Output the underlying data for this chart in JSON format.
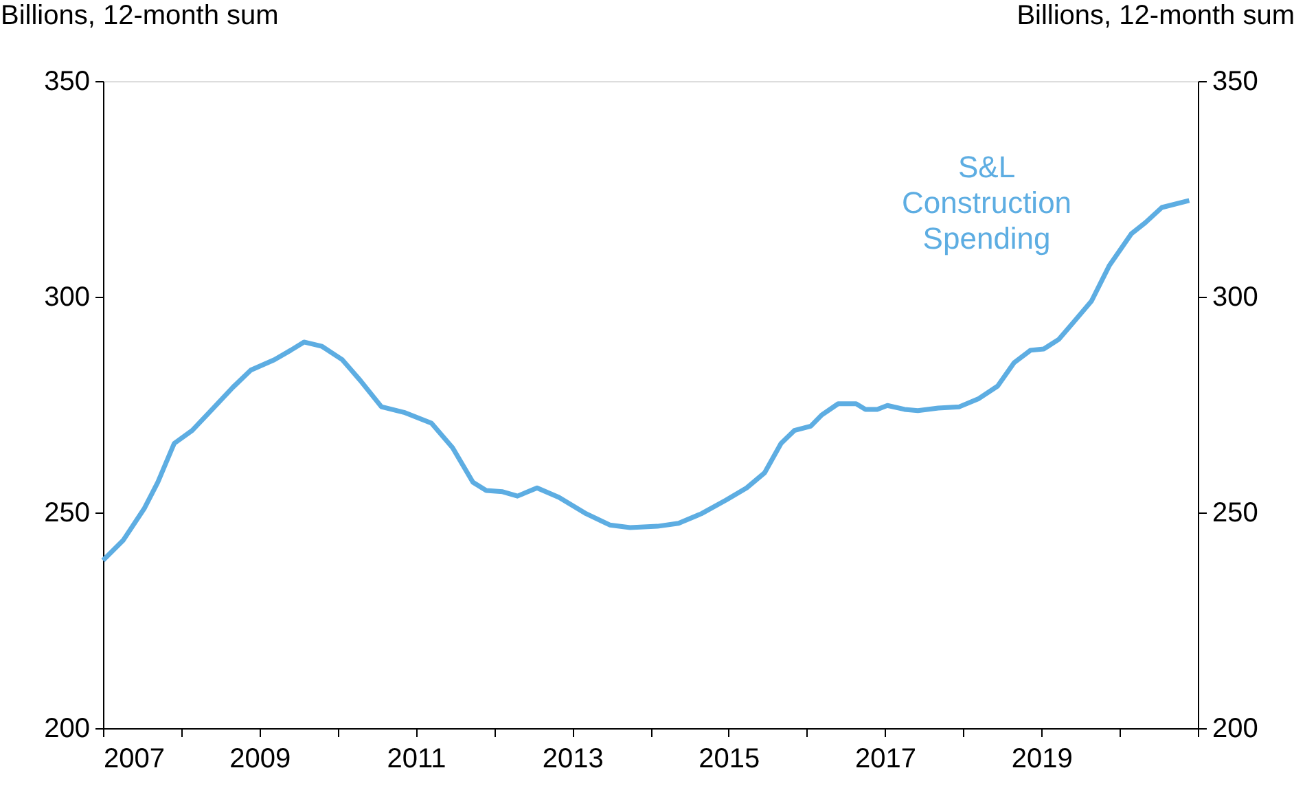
{
  "chart_data": {
    "type": "line",
    "ylabel": "Billions, 12-month sum",
    "y2label": "Billions, 12-month sum",
    "xlim": [
      2007,
      2021
    ],
    "xticks": [
      2007,
      {
        "value": 2008,
        "label": null
      },
      2009,
      {
        "value": 2010,
        "label": null
      },
      2011,
      {
        "value": 2012,
        "label": null
      },
      2013,
      {
        "value": 2014,
        "label": null
      },
      2015,
      {
        "value": 2016,
        "label": null
      },
      2017,
      {
        "value": 2018,
        "label": null
      },
      2019,
      {
        "value": 2020,
        "label": null
      },
      {
        "value": 2021,
        "label": null
      }
    ],
    "ylim": [
      200,
      350
    ],
    "yticks": [
      200,
      250,
      300,
      350
    ],
    "y2lim": [
      200,
      350
    ],
    "y2ticks": [
      200,
      250,
      300,
      350
    ],
    "grid": false,
    "legend": false,
    "marker": "none",
    "line_style": "solid",
    "series": [
      {
        "name": "S&L Construction Spending",
        "color": "#5dade2",
        "x": [
          2007.0,
          2007.26,
          2007.53,
          2007.7,
          2007.91,
          2008.14,
          2008.4,
          2008.66,
          2008.89,
          2009.19,
          2009.4,
          2009.57,
          2009.8,
          2010.06,
          2010.29,
          2010.56,
          2010.85,
          2011.2,
          2011.47,
          2011.73,
          2011.9,
          2012.11,
          2012.3,
          2012.55,
          2012.83,
          2013.18,
          2013.48,
          2013.74,
          2014.09,
          2014.36,
          2014.65,
          2014.97,
          2015.23,
          2015.46,
          2015.67,
          2015.84,
          2016.05,
          2016.19,
          2016.4,
          2016.63,
          2016.75,
          2016.9,
          2017.03,
          2017.25,
          2017.42,
          2017.68,
          2017.95,
          2018.2,
          2018.44,
          2018.65,
          2018.86,
          2019.03,
          2019.22,
          2019.42,
          2019.64,
          2019.87,
          2020.15,
          2020.33,
          2020.54,
          2020.89
        ],
        "values": [
          238.9,
          243.6,
          251.0,
          257.0,
          266.0,
          269.0,
          274.0,
          279.0,
          283.0,
          285.4,
          287.6,
          289.5,
          288.5,
          285.4,
          280.6,
          274.5,
          273.2,
          270.7,
          265.0,
          257.0,
          255.1,
          254.8,
          253.8,
          255.7,
          253.5,
          249.7,
          247.1,
          246.5,
          246.8,
          247.5,
          249.7,
          252.9,
          255.7,
          259.2,
          266.0,
          269.0,
          270.0,
          272.6,
          275.2,
          275.2,
          273.9,
          273.9,
          274.8,
          273.9,
          273.6,
          274.2,
          274.5,
          276.4,
          279.3,
          284.7,
          287.6,
          287.9,
          290.1,
          294.3,
          299.0,
          307.3,
          314.6,
          317.2,
          320.7,
          322.3
        ]
      }
    ]
  }
}
